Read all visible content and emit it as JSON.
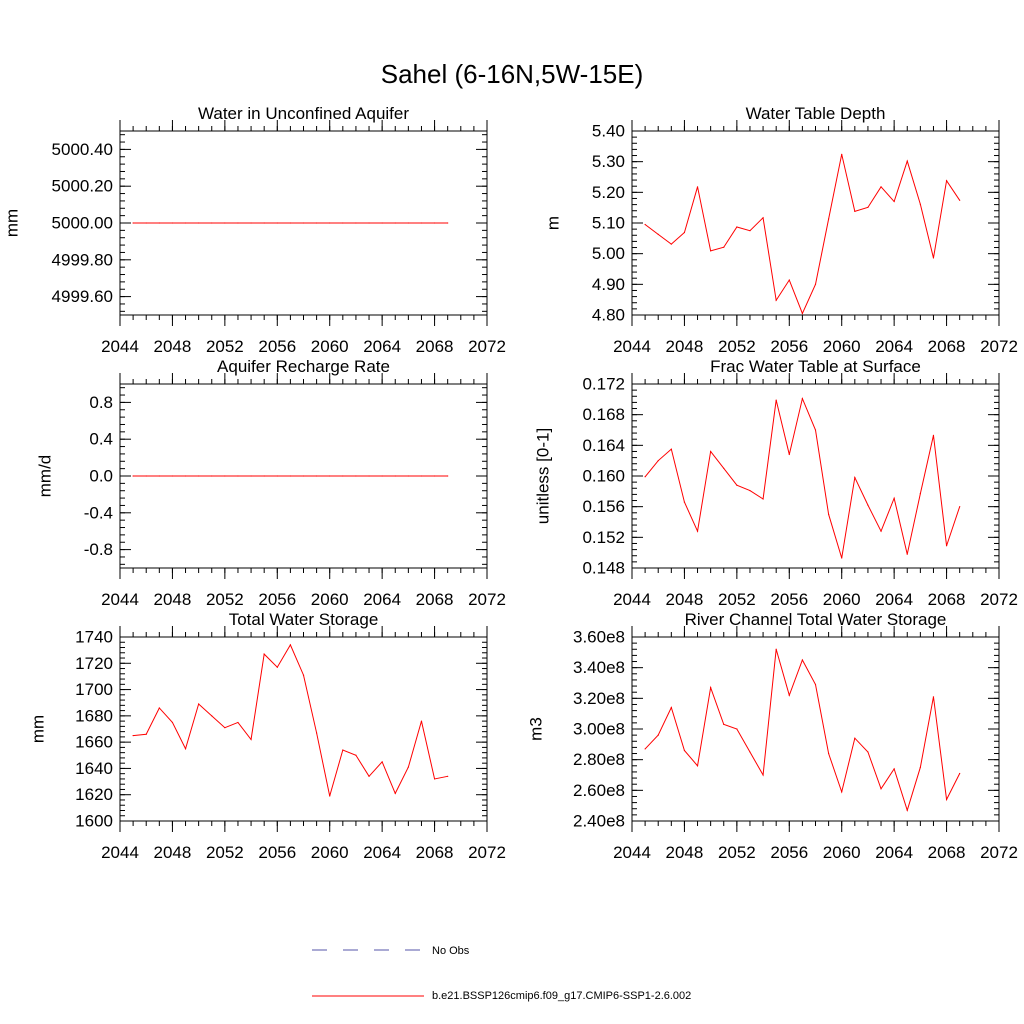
{
  "figure": {
    "title": "Sahel (6-16N,5W-15E)",
    "line_color": "#ff0000",
    "obs_color": "#5555aa"
  },
  "legend": {
    "obs_label": "No Obs",
    "model_label": "b.e21.BSSP126cmip6.f09_g17.CMIP6-SSP1-2.6.002"
  },
  "chart_data": [
    {
      "type": "line",
      "title": "Water in Unconfined Aquifer",
      "ylabel": "mm",
      "xlim": [
        2044,
        2072
      ],
      "ylim": [
        4999.5,
        5000.5
      ],
      "xticks": [
        2044,
        2048,
        2052,
        2056,
        2060,
        2064,
        2068,
        2072
      ],
      "xtick_labels": [
        "2044",
        "2048",
        "2052",
        "2056",
        "2060",
        "2064",
        "2068",
        "2072"
      ],
      "yticks": [
        4999.6,
        4999.8,
        5000.0,
        5000.2,
        5000.4
      ],
      "ytick_labels": [
        "4999.60",
        "4999.80",
        "5000.00",
        "5000.20",
        "5000.40"
      ],
      "x": [
        2045,
        2046,
        2047,
        2048,
        2049,
        2050,
        2051,
        2052,
        2053,
        2054,
        2055,
        2056,
        2057,
        2058,
        2059,
        2060,
        2061,
        2062,
        2063,
        2064,
        2065,
        2066,
        2067,
        2068,
        2069
      ],
      "series": [
        {
          "values": [
            5000.0,
            5000.0,
            5000.0,
            5000.0,
            5000.0,
            5000.0,
            5000.0,
            5000.0,
            5000.0,
            5000.0,
            5000.0,
            5000.0,
            5000.0,
            5000.0,
            5000.0,
            5000.0,
            5000.0,
            5000.0,
            5000.0,
            5000.0,
            5000.0,
            5000.0,
            5000.0,
            5000.0,
            5000.0
          ]
        }
      ]
    },
    {
      "type": "line",
      "title": "Water Table Depth",
      "ylabel": "m",
      "xlim": [
        2044,
        2072
      ],
      "ylim": [
        4.8,
        5.4
      ],
      "xticks": [
        2044,
        2048,
        2052,
        2056,
        2060,
        2064,
        2068,
        2072
      ],
      "xtick_labels": [
        "2044",
        "2048",
        "2052",
        "2056",
        "2060",
        "2064",
        "2068",
        "2072"
      ],
      "yticks": [
        4.8,
        4.9,
        5.0,
        5.1,
        5.2,
        5.3,
        5.4
      ],
      "ytick_labels": [
        "4.80",
        "4.90",
        "5.00",
        "5.10",
        "5.20",
        "5.30",
        "5.40"
      ],
      "x": [
        2045,
        2046,
        2047,
        2048,
        2049,
        2050,
        2051,
        2052,
        2053,
        2054,
        2055,
        2056,
        2057,
        2058,
        2059,
        2060,
        2061,
        2062,
        2063,
        2064,
        2065,
        2066,
        2067,
        2068,
        2069
      ],
      "series": [
        {
          "values": [
            5.095,
            5.063,
            5.031,
            5.069,
            5.218,
            5.009,
            5.021,
            5.087,
            5.075,
            5.117,
            4.848,
            4.914,
            4.805,
            4.9,
            5.113,
            5.324,
            5.138,
            5.151,
            5.218,
            5.17,
            5.302,
            5.161,
            4.986,
            5.238,
            5.174
          ]
        }
      ]
    },
    {
      "type": "line",
      "title": "Aquifer Recharge Rate",
      "ylabel": "mm/d",
      "xlim": [
        2044,
        2072
      ],
      "ylim": [
        -1.0,
        1.0
      ],
      "xticks": [
        2044,
        2048,
        2052,
        2056,
        2060,
        2064,
        2068,
        2072
      ],
      "xtick_labels": [
        "2044",
        "2048",
        "2052",
        "2056",
        "2060",
        "2064",
        "2068",
        "2072"
      ],
      "yticks": [
        -0.8,
        -0.4,
        0.0,
        0.4,
        0.8
      ],
      "ytick_labels": [
        "-0.8",
        "-0.4",
        "0.0",
        "0.4",
        "0.8"
      ],
      "x": [
        2045,
        2046,
        2047,
        2048,
        2049,
        2050,
        2051,
        2052,
        2053,
        2054,
        2055,
        2056,
        2057,
        2058,
        2059,
        2060,
        2061,
        2062,
        2063,
        2064,
        2065,
        2066,
        2067,
        2068,
        2069
      ],
      "series": [
        {
          "values": [
            0,
            0,
            0,
            0,
            0,
            0,
            0,
            0,
            0,
            0,
            0,
            0,
            0,
            0,
            0,
            0,
            0,
            0,
            0,
            0,
            0,
            0,
            0,
            0,
            0
          ]
        }
      ]
    },
    {
      "type": "line",
      "title": "Frac Water Table at Surface",
      "ylabel": "unitless [0-1]",
      "xlim": [
        2044,
        2072
      ],
      "ylim": [
        0.148,
        0.172
      ],
      "xticks": [
        2044,
        2048,
        2052,
        2056,
        2060,
        2064,
        2068,
        2072
      ],
      "xtick_labels": [
        "2044",
        "2048",
        "2052",
        "2056",
        "2060",
        "2064",
        "2068",
        "2072"
      ],
      "yticks": [
        0.148,
        0.152,
        0.156,
        0.16,
        0.164,
        0.168,
        0.172
      ],
      "ytick_labels": [
        "0.148",
        "0.152",
        "0.156",
        "0.160",
        "0.164",
        "0.168",
        "0.172"
      ],
      "x": [
        2045,
        2046,
        2047,
        2048,
        2049,
        2050,
        2051,
        2052,
        2053,
        2054,
        2055,
        2056,
        2057,
        2058,
        2059,
        2060,
        2061,
        2062,
        2063,
        2064,
        2065,
        2066,
        2067,
        2068,
        2069
      ],
      "series": [
        {
          "values": [
            0.1599,
            0.162,
            0.1635,
            0.1566,
            0.1528,
            0.1632,
            0.161,
            0.1588,
            0.1581,
            0.157,
            0.1699,
            0.1628,
            0.1701,
            0.166,
            0.155,
            0.1493,
            0.1598,
            0.1562,
            0.1528,
            0.1571,
            0.1498,
            0.1577,
            0.1653,
            0.1509,
            0.156
          ]
        }
      ]
    },
    {
      "type": "line",
      "title": "Total Water Storage",
      "ylabel": "mm",
      "xlim": [
        2044,
        2072
      ],
      "ylim": [
        1600,
        1740
      ],
      "xticks": [
        2044,
        2048,
        2052,
        2056,
        2060,
        2064,
        2068,
        2072
      ],
      "xtick_labels": [
        "2044",
        "2048",
        "2052",
        "2056",
        "2060",
        "2064",
        "2068",
        "2072"
      ],
      "yticks": [
        1600,
        1620,
        1640,
        1660,
        1680,
        1700,
        1720,
        1740
      ],
      "ytick_labels": [
        "1600",
        "1620",
        "1640",
        "1660",
        "1680",
        "1700",
        "1720",
        "1740"
      ],
      "x": [
        2045,
        2046,
        2047,
        2048,
        2049,
        2050,
        2051,
        2052,
        2053,
        2054,
        2055,
        2056,
        2057,
        2058,
        2059,
        2060,
        2061,
        2062,
        2063,
        2064,
        2065,
        2066,
        2067,
        2068,
        2069
      ],
      "series": [
        {
          "values": [
            1665,
            1666,
            1686,
            1675,
            1655,
            1689,
            1680,
            1671,
            1675,
            1662,
            1727,
            1717,
            1734,
            1711,
            1667,
            1619,
            1654,
            1650,
            1634,
            1645,
            1621,
            1641,
            1676,
            1632,
            1634
          ]
        }
      ]
    },
    {
      "type": "line",
      "title": "River Channel Total Water Storage",
      "ylabel": "m3",
      "xlim": [
        2044,
        2072
      ],
      "ylim": [
        240000000,
        360000000
      ],
      "xticks": [
        2044,
        2048,
        2052,
        2056,
        2060,
        2064,
        2068,
        2072
      ],
      "xtick_labels": [
        "2044",
        "2048",
        "2052",
        "2056",
        "2060",
        "2064",
        "2068",
        "2072"
      ],
      "yticks": [
        240000000,
        260000000,
        280000000,
        300000000,
        320000000,
        340000000,
        360000000
      ],
      "ytick_labels": [
        "2.40e8",
        "2.60e8",
        "2.80e8",
        "3.00e8",
        "3.20e8",
        "3.40e8",
        "3.60e8"
      ],
      "x": [
        2045,
        2046,
        2047,
        2048,
        2049,
        2050,
        2051,
        2052,
        2053,
        2054,
        2055,
        2056,
        2057,
        2058,
        2059,
        2060,
        2061,
        2062,
        2063,
        2064,
        2065,
        2066,
        2067,
        2068,
        2069
      ],
      "series": [
        {
          "values": [
            287000000,
            296000000,
            314000000,
            286000000,
            276000000,
            327000000,
            303000000,
            300000000,
            285000000,
            270000000,
            352000000,
            322000000,
            345000000,
            329000000,
            284000000,
            259000000,
            294000000,
            285000000,
            261000000,
            274000000,
            247000000,
            275000000,
            321000000,
            254000000,
            271000000
          ]
        }
      ]
    }
  ]
}
